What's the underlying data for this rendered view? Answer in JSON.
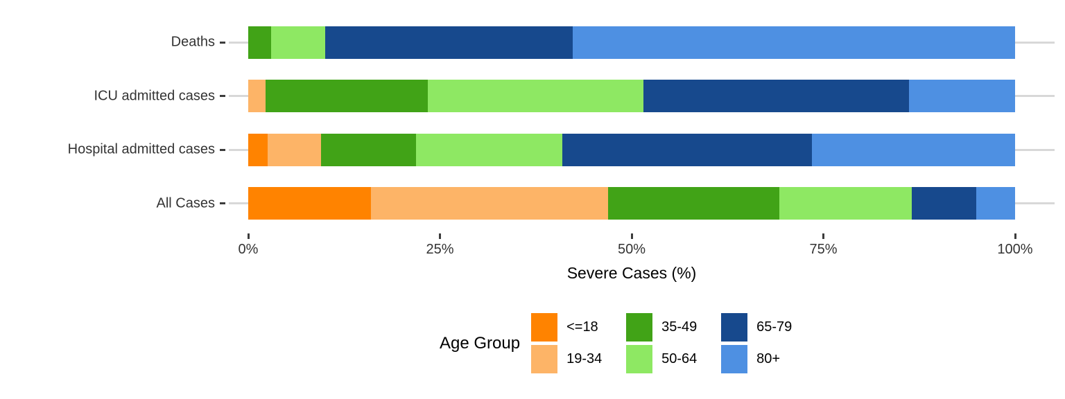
{
  "chart_data": {
    "type": "bar",
    "subtype": "horizontal-stacked-percent",
    "title": "",
    "xlabel": "Severe Cases (%)",
    "ylabel": "",
    "categories": [
      "Deaths",
      "ICU admitted cases",
      "Hospital admitted cases",
      "All Cases"
    ],
    "series": [
      {
        "name": "<=18",
        "color": "#FF8300",
        "values": [
          0,
          0,
          2.5,
          16.0
        ]
      },
      {
        "name": "19-34",
        "color": "#FDB467",
        "values": [
          0,
          2.3,
          7.0,
          30.9
        ]
      },
      {
        "name": "35-49",
        "color": "#41A317",
        "values": [
          3.0,
          21.1,
          12.4,
          22.4
        ]
      },
      {
        "name": "50-64",
        "color": "#8EE863",
        "values": [
          7.0,
          28.1,
          19.1,
          17.2
        ]
      },
      {
        "name": "65-79",
        "color": "#17498D",
        "values": [
          32.3,
          34.7,
          32.5,
          8.4
        ]
      },
      {
        "name": "80+",
        "color": "#4E90E2",
        "values": [
          57.7,
          13.8,
          26.5,
          5.1
        ]
      }
    ],
    "xlim": [
      0,
      100
    ],
    "x_ticks": [
      {
        "label": "0%",
        "value": 0
      },
      {
        "label": "25%",
        "value": 25
      },
      {
        "label": "50%",
        "value": 50
      },
      {
        "label": "75%",
        "value": 75
      },
      {
        "label": "100%",
        "value": 100
      }
    ],
    "grid": "horizontal light-gray gridline per category",
    "legend_title": "Age Group",
    "legend_position": "bottom",
    "legend_columns": [
      [
        0,
        1
      ],
      [
        2,
        3
      ],
      [
        4,
        5
      ]
    ]
  },
  "colors": {
    "background": "#FFFFFF",
    "gridline": "#D8D8D8",
    "tick": "#3C3C3C",
    "axis_text": "#333333",
    "title_text": "#000000"
  }
}
